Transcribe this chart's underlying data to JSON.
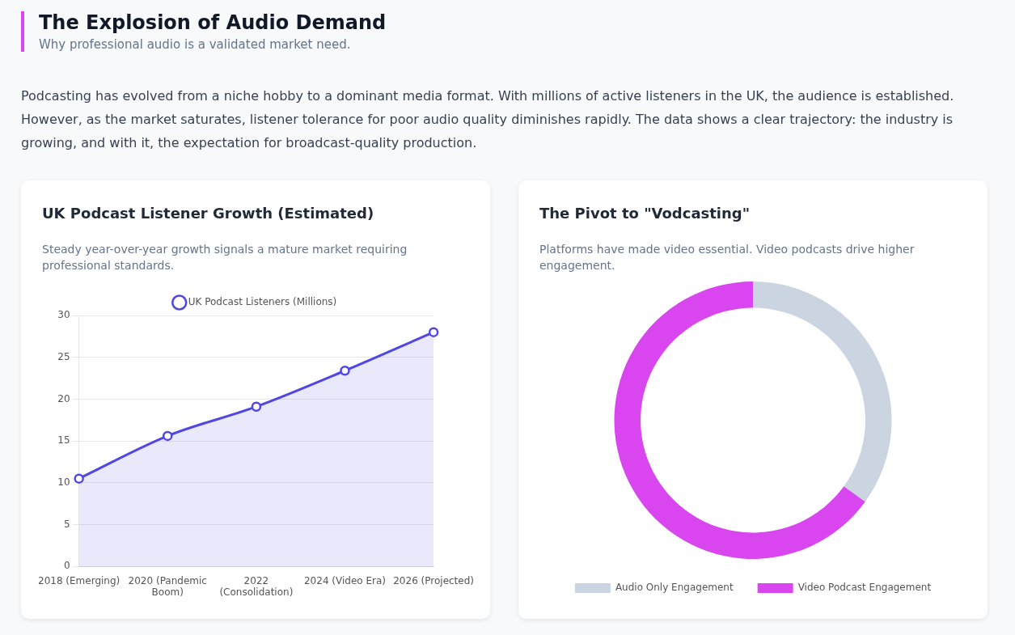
{
  "chart_data": [
    {
      "type": "other",
      "title": "The Explosion of Audio Demand",
      "subtitle": "Why professional audio is a validated market need.",
      "annotations": [
        "Podcasting has evolved from a niche hobby to a dominant media format. With millions of active listeners in the UK, the audience is established. However, as the market saturates, listener tolerance for poor audio quality diminishes rapidly. The data shows a clear trajectory: the industry is growing, and with it, the expectation for broadcast-quality production."
      ]
    },
    {
      "type": "area",
      "title": "UK Podcast Listener Growth (Estimated)",
      "subtitle": "Steady year-over-year growth signals a mature market requiring professional standards.",
      "categories": [
        "2018 (Emerging)",
        "2020 (Pandemic Boom)",
        "2022 (Consolidation)",
        "2024 (Video Era)",
        "2026 (Projected)"
      ],
      "series": [
        {
          "name": "UK Podcast Listeners (Millions)",
          "color": "#4f46e5",
          "values": [
            10.5,
            15.6,
            19.1,
            23.4,
            28
          ]
        }
      ],
      "ylim": [
        0,
        30
      ],
      "yticks": [
        0,
        5,
        10,
        15,
        20,
        25,
        30
      ],
      "grid": "y",
      "legend": "top",
      "marker": "circle"
    },
    {
      "type": "donut",
      "title": "The Pivot to \"Vodcasting\"",
      "subtitle": "Platforms have made video essential. Video podcasts drive higher engagement.",
      "categories": [
        "Audio Only Engagement",
        "Video Podcast Engagement"
      ],
      "values": [
        35,
        65
      ],
      "colors": [
        "#cbd5e1",
        "#d946ef"
      ],
      "legend": "bottom"
    }
  ]
}
